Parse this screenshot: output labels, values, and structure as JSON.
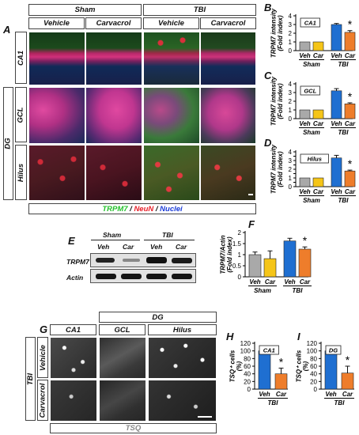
{
  "panel_letters": {
    "A": "A",
    "B": "B",
    "C": "C",
    "D": "D",
    "E": "E",
    "F": "F",
    "G": "G",
    "H": "H",
    "I": "I"
  },
  "panel_a": {
    "groups": [
      "Sham",
      "TBI"
    ],
    "treatments": [
      "Vehicle",
      "Carvacrol",
      "Vehicle",
      "Carvacrol"
    ],
    "rows": [
      "CA1",
      "GCL",
      "Hilus"
    ],
    "region_group": "DG",
    "legend": {
      "trpm7": "TRPM7",
      "sep1": " / ",
      "neun": "NeuN",
      "sep2": " / ",
      "nuclei": "Nuclei"
    },
    "colors": {
      "trpm7": "#22c02a",
      "neun": "#e8202a",
      "nuclei": "#1a3cd8"
    }
  },
  "panel_e": {
    "groups": [
      "Sham",
      "TBI"
    ],
    "lanes": [
      "Veh",
      "Car",
      "Veh",
      "Car"
    ],
    "blots": [
      "TRPM7",
      "Actin"
    ]
  },
  "panel_g": {
    "region_group": "DG",
    "columns": [
      "CA1",
      "GCL",
      "Hilus"
    ],
    "row_group": "TBI",
    "rows": [
      "Vehicle",
      "Carvacrol"
    ],
    "legend": "TSQ"
  },
  "chart_data": [
    {
      "id": "B",
      "type": "bar",
      "ylabel": "TRPM7 intensity (Fold index)",
      "inset": "CA1",
      "categories": [
        "Veh",
        "Car",
        "Veh",
        "Car"
      ],
      "groups": [
        "Sham",
        "TBI"
      ],
      "values": [
        1.0,
        1.0,
        3.0,
        2.1
      ],
      "errors": [
        0,
        0,
        0.12,
        0.2
      ],
      "colors": [
        "#a9a9a9",
        "#f5c518",
        "#1f6fd1",
        "#ee7d2b"
      ],
      "yticks": [
        0,
        1,
        2,
        3,
        4
      ],
      "ylim": [
        0,
        4
      ],
      "significance": [
        "",
        "",
        "",
        "*"
      ]
    },
    {
      "id": "C",
      "type": "bar",
      "ylabel": "TRPM7 intensity (Fold index)",
      "inset": "GCL",
      "categories": [
        "Veh",
        "Car",
        "Veh",
        "Car"
      ],
      "groups": [
        "Sham",
        "TBI"
      ],
      "values": [
        1.0,
        1.0,
        3.2,
        1.7
      ],
      "errors": [
        0,
        0,
        0.25,
        0.12
      ],
      "colors": [
        "#a9a9a9",
        "#f5c518",
        "#1f6fd1",
        "#ee7d2b"
      ],
      "yticks": [
        0,
        1,
        2,
        3,
        4
      ],
      "ylim": [
        0,
        4
      ],
      "significance": [
        "",
        "",
        "",
        "*"
      ]
    },
    {
      "id": "D",
      "type": "bar",
      "ylabel": "TRPM7 intensity (Fold index)",
      "inset": "Hilus",
      "categories": [
        "Veh",
        "Car",
        "Veh",
        "Car"
      ],
      "groups": [
        "Sham",
        "TBI"
      ],
      "values": [
        1.0,
        1.0,
        3.3,
        1.8
      ],
      "errors": [
        0,
        0,
        0.3,
        0.1
      ],
      "colors": [
        "#a9a9a9",
        "#f5c518",
        "#1f6fd1",
        "#ee7d2b"
      ],
      "yticks": [
        0,
        0.5,
        1,
        1.5,
        2,
        2.5,
        3,
        3.5,
        4
      ],
      "ylim": [
        0,
        4
      ],
      "significance": [
        "",
        "",
        "",
        "*"
      ]
    },
    {
      "id": "F",
      "type": "bar",
      "ylabel": "TRPM7/Actin (Fold index)",
      "inset": "",
      "categories": [
        "Veh",
        "Car",
        "Veh",
        "Car"
      ],
      "groups": [
        "Sham",
        "TBI"
      ],
      "values": [
        1.0,
        0.82,
        1.62,
        1.25
      ],
      "errors": [
        0.12,
        0.35,
        0.12,
        0.1
      ],
      "colors": [
        "#a9a9a9",
        "#f5c518",
        "#1f6fd1",
        "#ee7d2b"
      ],
      "yticks": [
        0,
        0.5,
        1,
        1.5,
        2
      ],
      "ylim": [
        0,
        2
      ],
      "significance": [
        "",
        "",
        "",
        "*"
      ]
    },
    {
      "id": "H",
      "type": "bar",
      "ylabel": "TSQ+ cells (%)",
      "inset": "CA1",
      "categories": [
        "Veh",
        "Car"
      ],
      "groups": [
        "TBI"
      ],
      "values": [
        100,
        40
      ],
      "errors": [
        8,
        15
      ],
      "colors": [
        "#1f6fd1",
        "#ee7d2b"
      ],
      "yticks": [
        0,
        20,
        40,
        60,
        80,
        100,
        120
      ],
      "ylim": [
        0,
        120
      ],
      "significance": [
        "",
        "*"
      ]
    },
    {
      "id": "I",
      "type": "bar",
      "ylabel": "TSQ+ cells (%)",
      "inset": "DG",
      "categories": [
        "Veh",
        "Car"
      ],
      "groups": [
        "TBI"
      ],
      "values": [
        100,
        42
      ],
      "errors": [
        8,
        18
      ],
      "colors": [
        "#1f6fd1",
        "#ee7d2b"
      ],
      "yticks": [
        0,
        20,
        40,
        60,
        80,
        100,
        120
      ],
      "ylim": [
        0,
        120
      ],
      "significance": [
        "",
        "*"
      ]
    }
  ]
}
